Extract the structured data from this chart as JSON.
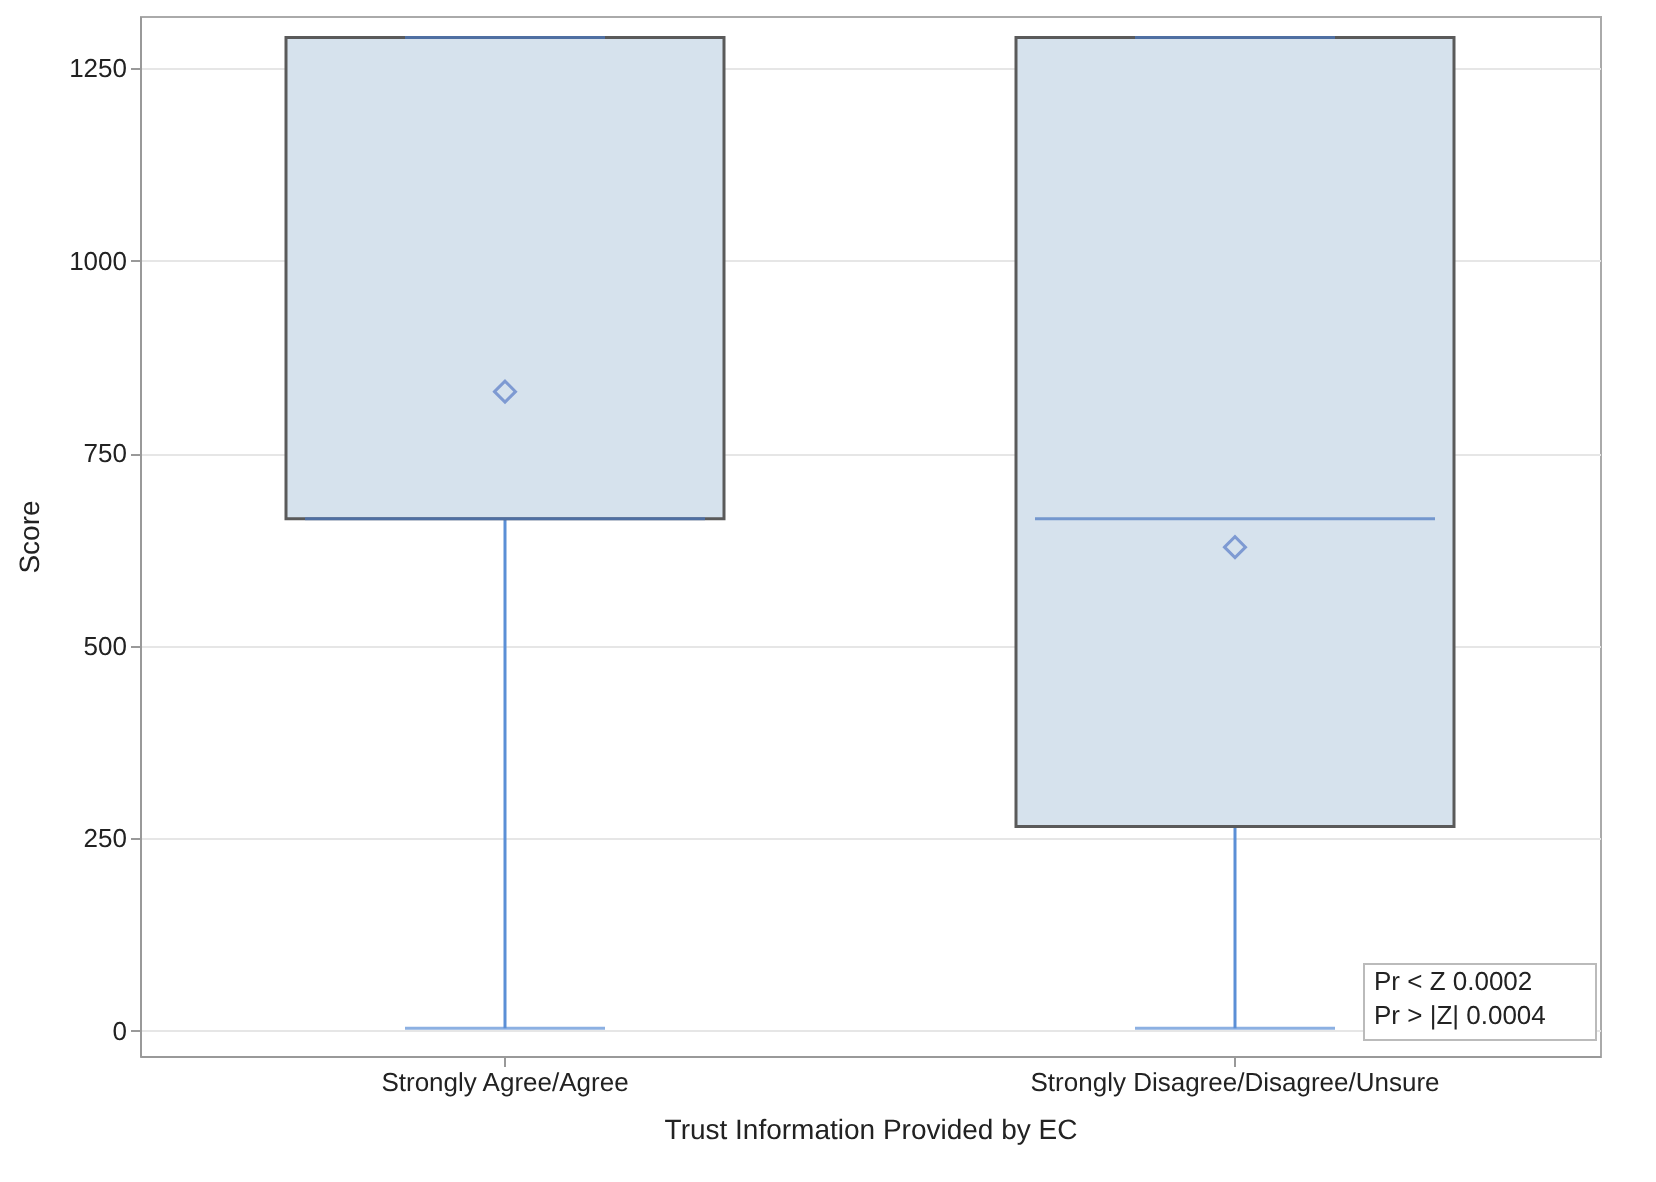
{
  "chart_data": {
    "type": "box",
    "categories": [
      "Strongly Agree/Agree",
      "Strongly Disagree/Disagree/Unsure"
    ],
    "boxes": [
      {
        "low": 3,
        "q1": 665,
        "median": 665,
        "q3": 1290,
        "high": 1290,
        "mean": 830
      },
      {
        "low": 3,
        "q1": 265,
        "median": 665,
        "q3": 1290,
        "high": 1290,
        "mean": 628
      }
    ],
    "xlabel": "Trust Information Provided by EC",
    "ylabel": "Score",
    "ylim": [
      -33,
      1318
    ],
    "yticks": [
      0,
      250,
      500,
      750,
      1000,
      1250
    ],
    "grid": "y",
    "marker": "diamond",
    "annotations": [
      "Pr < Z    0.0002",
      "Pr > |Z|  0.0004"
    ]
  }
}
